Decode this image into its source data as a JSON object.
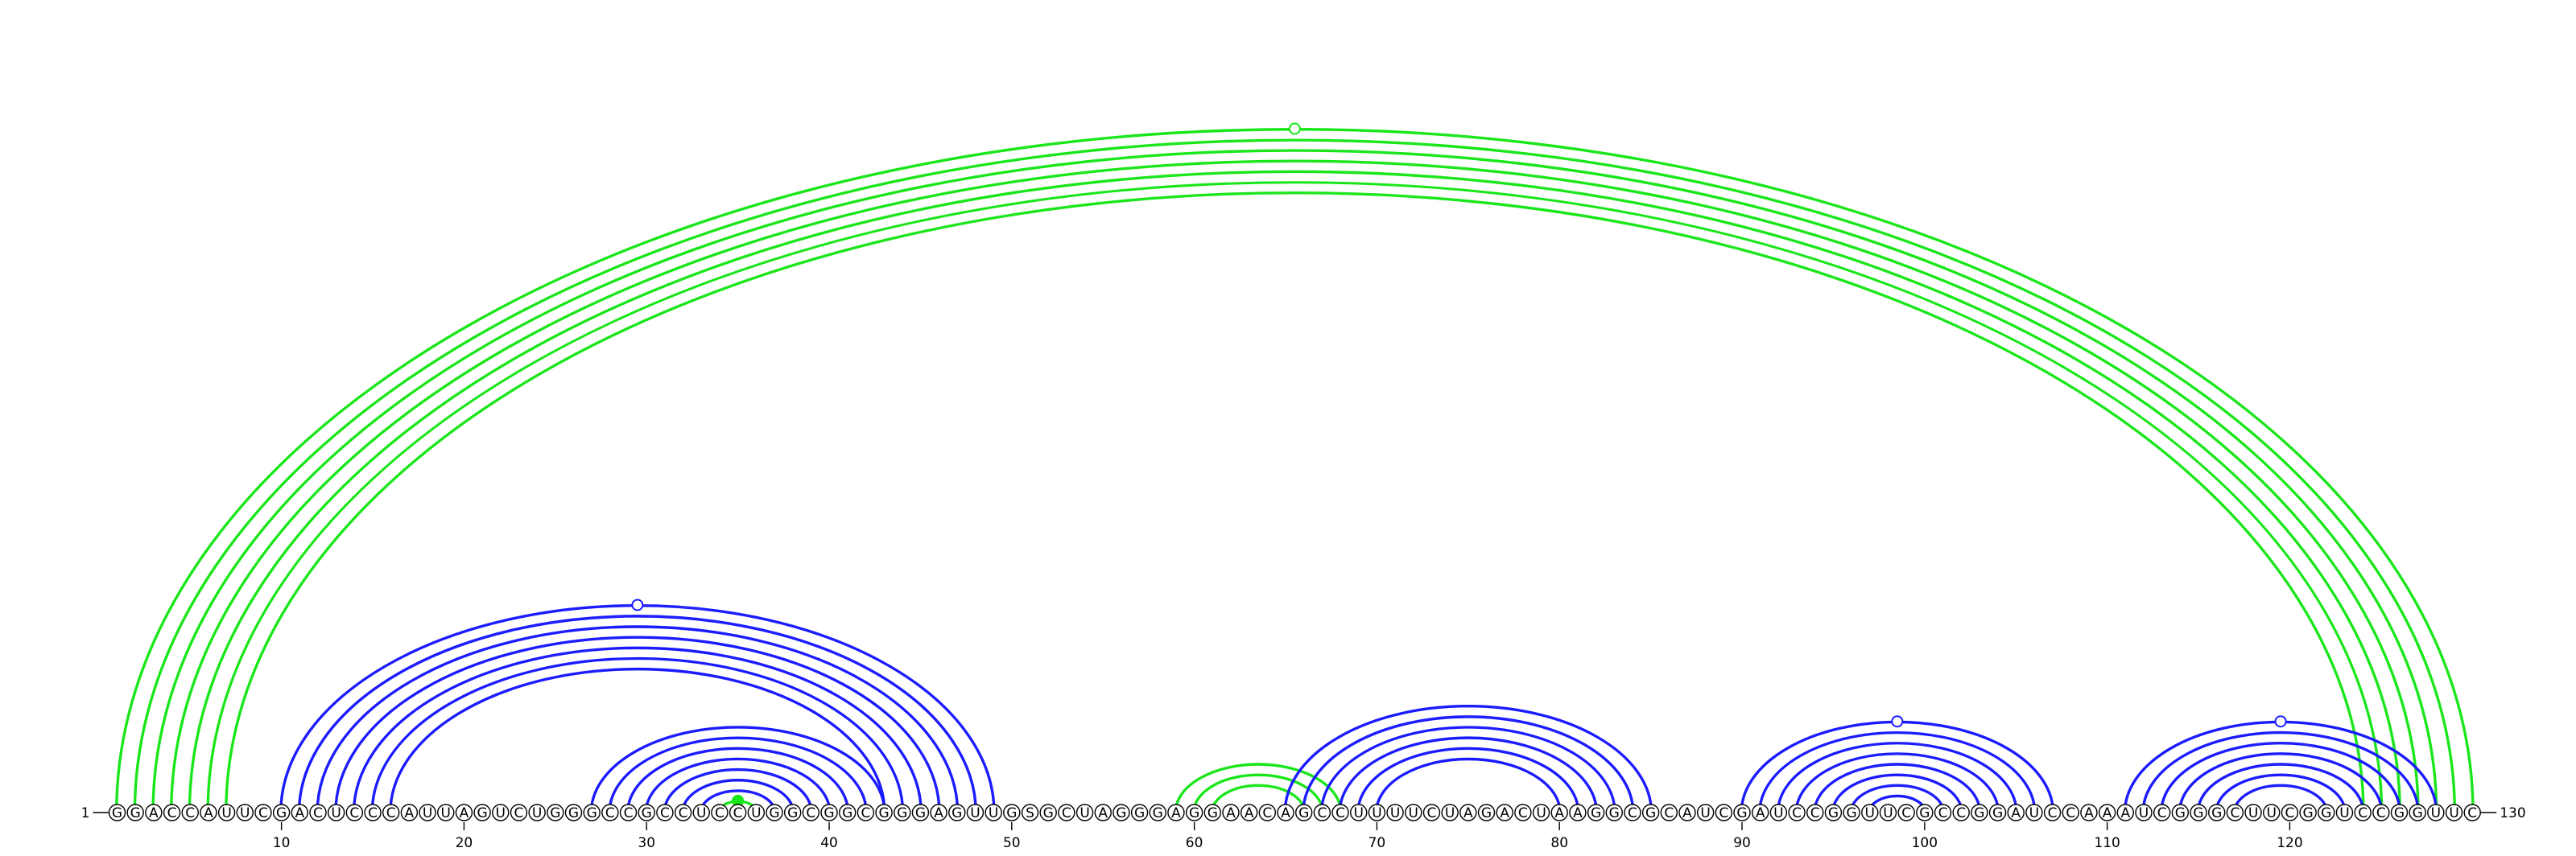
{
  "sequence": "GGACCAUUCGACUCCCAUUAGUCUGGGCCGCCUCCUGGCGGCGGGAGUUGSGCUAGGGAGGAACAGCCUUUUCUAGACUAAGGCGCAUCGAUCCGGUUCGCCGGAUCCAAAUCGGGCUUCGGUCCGGUUC",
  "start_label": "1",
  "end_label": "130",
  "axis_ticks": [
    10,
    20,
    30,
    40,
    50,
    60,
    70,
    80,
    90,
    100,
    110,
    120
  ],
  "colors": {
    "blue": "#1a1aff",
    "green": "#19e619"
  },
  "helices": [
    {
      "color": "green",
      "pairs": [
        [
          1,
          130
        ],
        [
          2,
          129
        ],
        [
          3,
          128
        ],
        [
          4,
          127
        ],
        [
          5,
          126
        ],
        [
          6,
          125
        ],
        [
          7,
          124
        ]
      ],
      "marker": "open"
    },
    {
      "color": "blue",
      "pairs": [
        [
          10,
          49
        ],
        [
          11,
          48
        ],
        [
          12,
          47
        ],
        [
          13,
          46
        ],
        [
          14,
          45
        ],
        [
          15,
          44
        ],
        [
          16,
          43
        ]
      ],
      "marker": "open"
    },
    {
      "color": "blue",
      "pairs": [
        [
          27,
          43
        ],
        [
          28,
          42
        ],
        [
          29,
          41
        ],
        [
          30,
          40
        ],
        [
          31,
          39
        ],
        [
          32,
          38
        ],
        [
          33,
          37
        ]
      ]
    },
    {
      "color": "green",
      "pairs": [
        [
          34,
          36
        ]
      ],
      "marker": "filled"
    },
    {
      "color": "green",
      "pairs": [
        [
          59,
          68
        ],
        [
          60,
          67
        ],
        [
          61,
          66
        ]
      ]
    },
    {
      "color": "blue",
      "pairs": [
        [
          65,
          85
        ],
        [
          66,
          84
        ],
        [
          67,
          83
        ],
        [
          68,
          82
        ],
        [
          69,
          81
        ],
        [
          70,
          80
        ]
      ]
    },
    {
      "color": "blue",
      "pairs": [
        [
          90,
          107
        ],
        [
          91,
          106
        ],
        [
          92,
          105
        ],
        [
          93,
          104
        ],
        [
          94,
          103
        ],
        [
          95,
          102
        ],
        [
          96,
          101
        ],
        [
          97,
          100
        ]
      ],
      "marker": "open"
    },
    {
      "color": "blue",
      "pairs": [
        [
          111,
          128
        ],
        [
          112,
          127
        ],
        [
          113,
          126
        ],
        [
          114,
          125
        ],
        [
          115,
          124
        ],
        [
          116,
          123
        ],
        [
          117,
          122
        ]
      ],
      "marker": "open"
    }
  ]
}
